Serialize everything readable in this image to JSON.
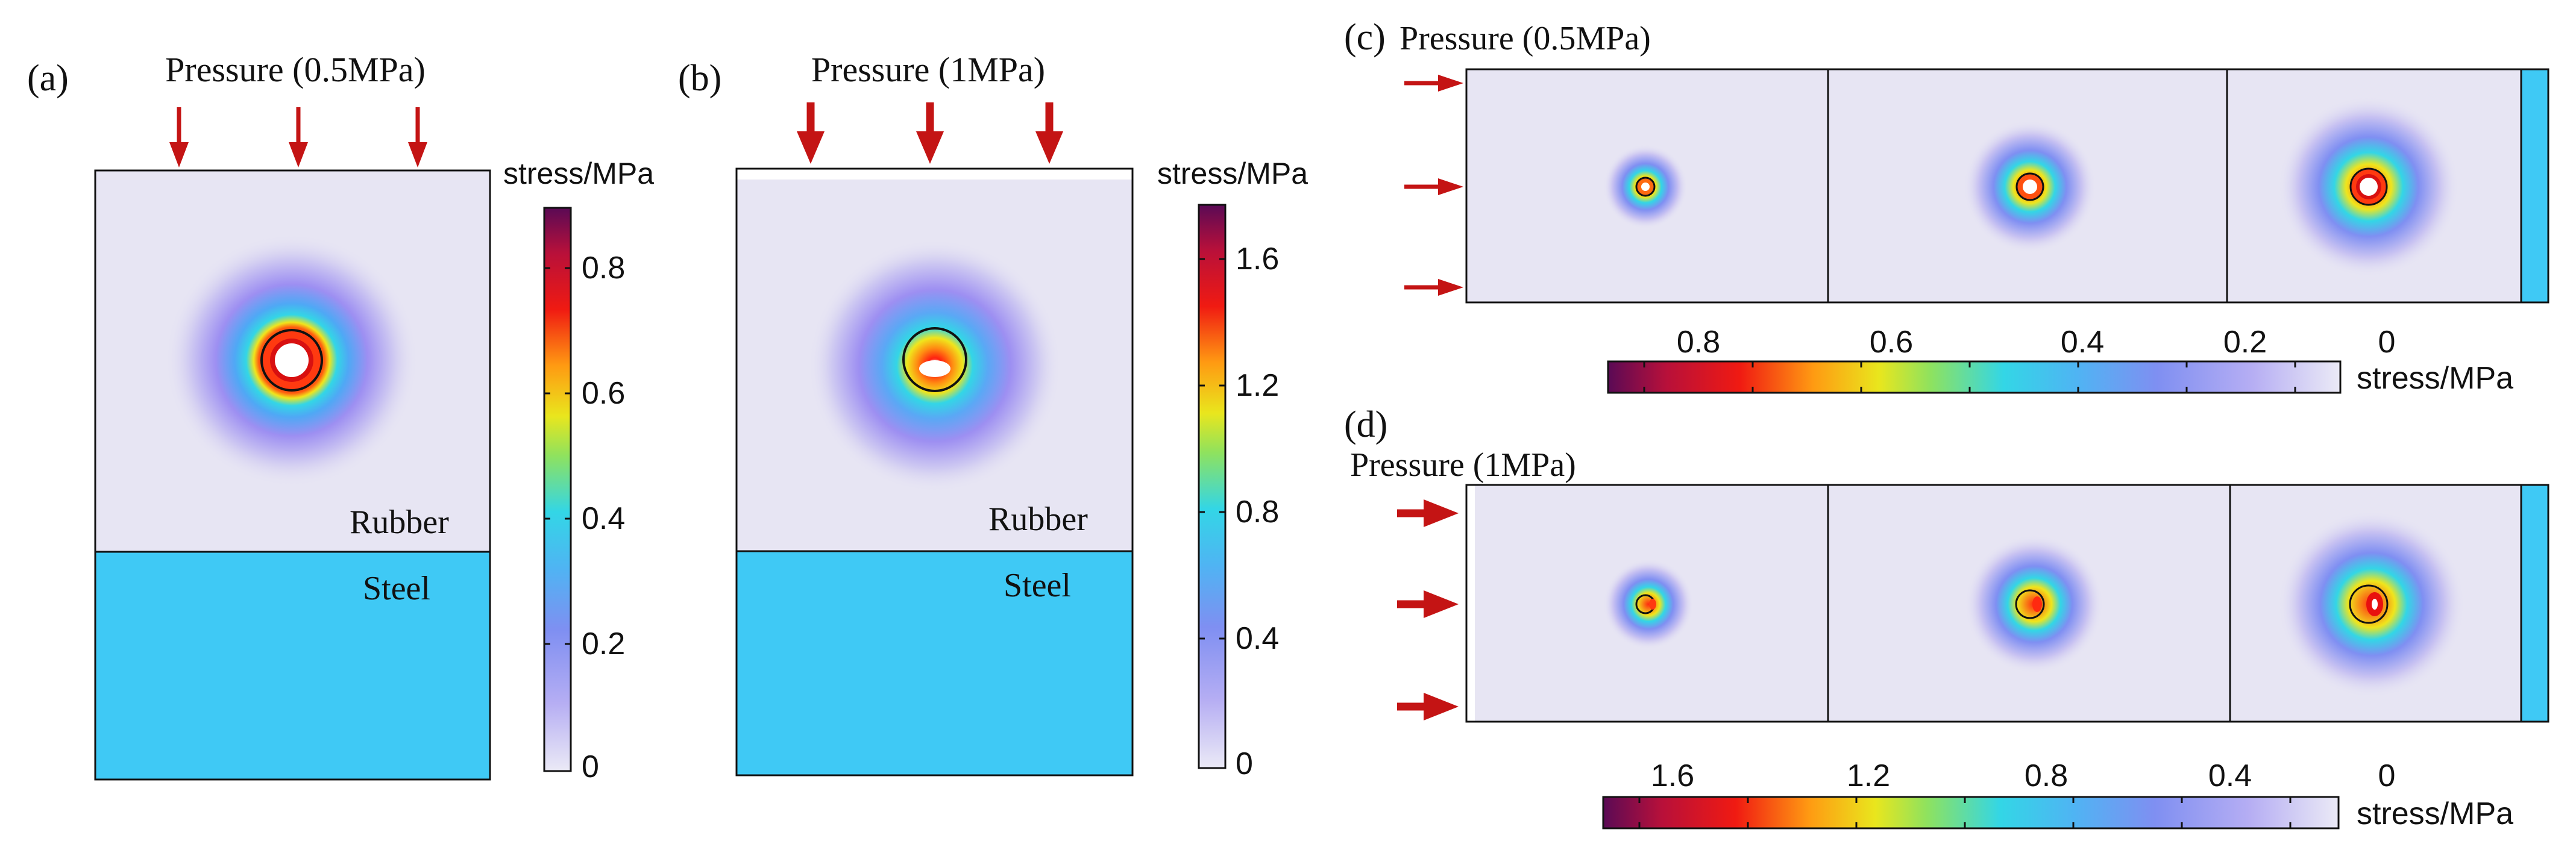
{
  "colors": {
    "rubber_bg": "#e7e5f3",
    "steel": "#3fc9f5",
    "arrow": "#c41414",
    "outline": "#111111",
    "colormap": [
      "#ebeaf6",
      "#9d8ff2",
      "#5aa8f5",
      "#33d6e6",
      "#9fe35a",
      "#f0e51c",
      "#ff8a14",
      "#ee1212",
      "#b8103a",
      "#5a0a55"
    ]
  },
  "panels": {
    "a": {
      "label": "(a)",
      "pressure_title": "Pressure (0.5MPa)",
      "rubber_label": "Rubber",
      "steel_label": "Steel",
      "colorbar": {
        "title": "stress/MPa",
        "ticks": [
          "0.8",
          "0.6",
          "0.4",
          "0.2",
          "0"
        ]
      }
    },
    "b": {
      "label": "(b)",
      "pressure_title": "Pressure (1MPa)",
      "rubber_label": "Rubber",
      "steel_label": "Steel",
      "colorbar": {
        "title": "stress/MPa",
        "ticks": [
          "1.6",
          "1.2",
          "0.8",
          "0.4",
          "0"
        ]
      }
    },
    "c": {
      "label": "(c)",
      "pressure_title": "Pressure (0.5MPa)",
      "colorbar": {
        "title": "stress/MPa",
        "ticks": [
          "0.8",
          "0.6",
          "0.4",
          "0.2",
          "0"
        ]
      }
    },
    "d": {
      "label": "(d)",
      "pressure_title": "Pressure (1MPa)",
      "colorbar": {
        "title": "stress/MPa",
        "ticks": [
          "1.6",
          "1.2",
          "0.8",
          "0.4",
          "0"
        ]
      }
    }
  }
}
